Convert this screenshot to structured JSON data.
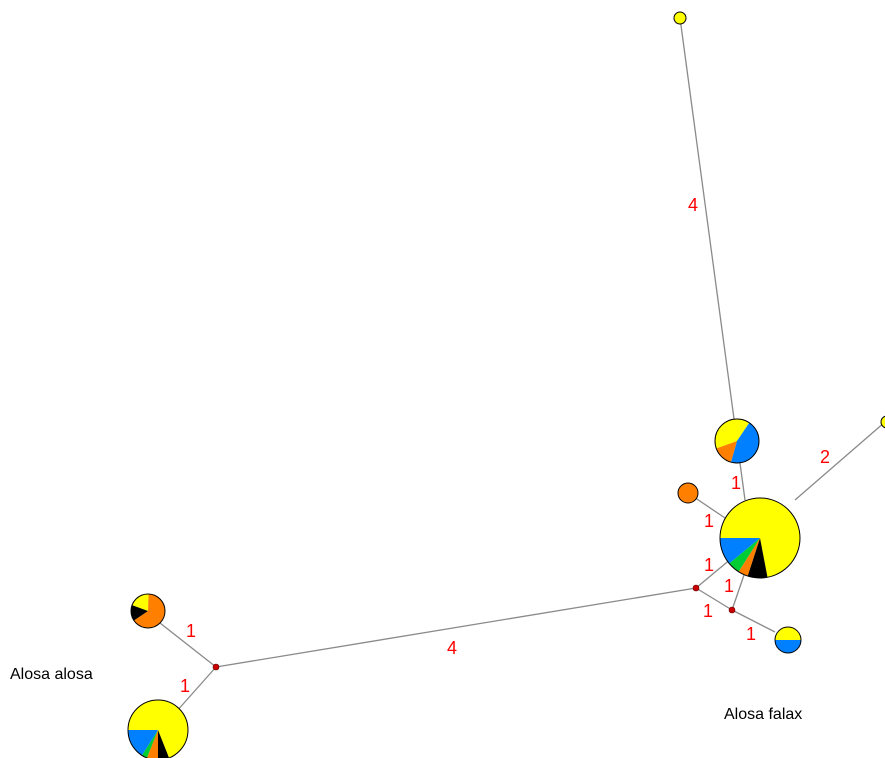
{
  "species_labels": {
    "left": "Alosa alosa",
    "right": "Alosa falax"
  },
  "edge_weights": [
    "1",
    "1",
    "4",
    "4",
    "1",
    "1",
    "1",
    "1",
    "1",
    "1",
    "2"
  ],
  "colors": {
    "yellow": "#ffff00",
    "orange": "#ff8000",
    "blue": "#0080ff",
    "green": "#00cc33",
    "black": "#000000",
    "edge": "#8a8a8a",
    "median_vector": "#cc0000",
    "weight_label": "#ff0000"
  },
  "haplotypes": [
    {
      "id": "h-top",
      "slices": [
        {
          "color": "yellow",
          "frac": 1
        }
      ]
    },
    {
      "id": "h-upper",
      "slices": [
        {
          "color": "yellow",
          "frac": 0.4
        },
        {
          "color": "blue",
          "frac": 0.45
        },
        {
          "color": "orange",
          "frac": 0.15
        }
      ]
    },
    {
      "id": "h-orange",
      "slices": [
        {
          "color": "orange",
          "frac": 1
        }
      ]
    },
    {
      "id": "h-big",
      "slices": [
        {
          "color": "yellow",
          "frac": 0.72
        },
        {
          "color": "black",
          "frac": 0.08
        },
        {
          "color": "orange",
          "frac": 0.04
        },
        {
          "color": "green",
          "frac": 0.05
        },
        {
          "color": "blue",
          "frac": 0.11
        }
      ]
    },
    {
      "id": "h-yb",
      "slices": [
        {
          "color": "yellow",
          "frac": 0.5
        },
        {
          "color": "blue",
          "frac": 0.5
        }
      ]
    },
    {
      "id": "h-right",
      "slices": [
        {
          "color": "yellow",
          "frac": 1
        }
      ]
    },
    {
      "id": "h-aa-small",
      "slices": [
        {
          "color": "yellow",
          "frac": 0.2
        },
        {
          "color": "orange",
          "frac": 0.65
        },
        {
          "color": "black",
          "frac": 0.15
        }
      ]
    },
    {
      "id": "h-aa-big",
      "slices": [
        {
          "color": "yellow",
          "frac": 0.69
        },
        {
          "color": "black",
          "frac": 0.06
        },
        {
          "color": "orange",
          "frac": 0.06
        },
        {
          "color": "green",
          "frac": 0.03
        },
        {
          "color": "blue",
          "frac": 0.16
        }
      ]
    }
  ]
}
